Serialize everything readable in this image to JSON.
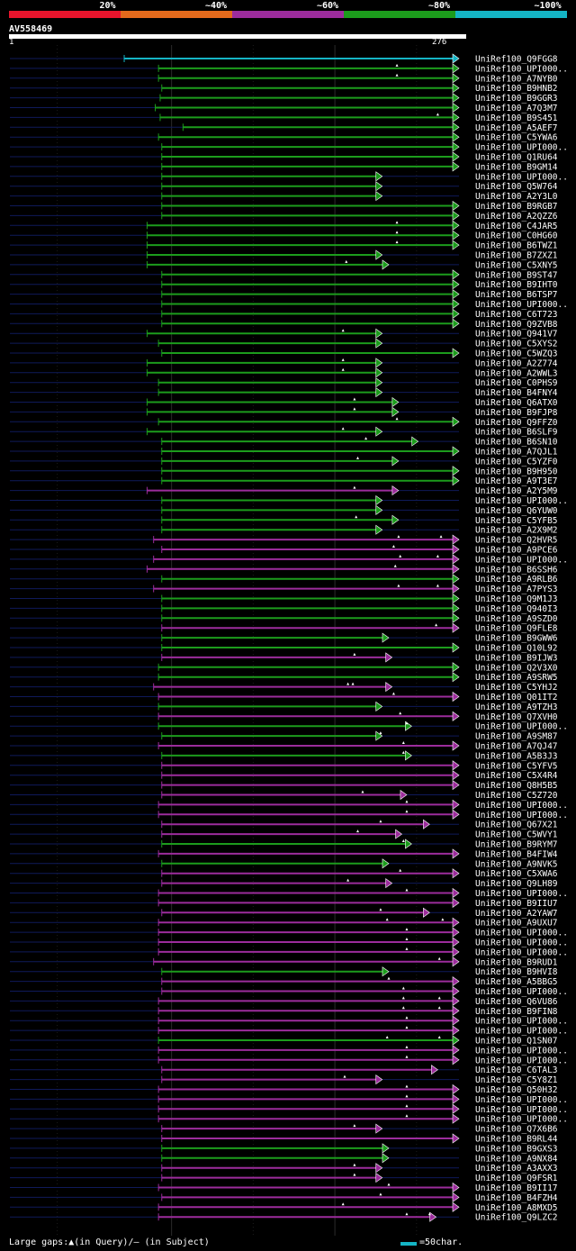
{
  "legend": {
    "labels": [
      "20%",
      "~40%",
      "~60%",
      "~80%",
      "~100%"
    ],
    "colors": [
      "#e8142c",
      "#e46a1c",
      "#9c2c9c",
      "#1c9c1c",
      "#14b4c4"
    ]
  },
  "query": {
    "name": "AV558469",
    "start": "1",
    "end": "276"
  },
  "footer": {
    "gaps_text": "Large gaps:▲(in Query)/– (in Subject)",
    "scale_text": "=50char.",
    "scale_color": "#14b4c4"
  },
  "chart_data": {
    "type": "alignment",
    "query_length": 276,
    "colors": {
      "100": "#14b4c4",
      "80": "#1c9c1c",
      "60": "#9c2c9c"
    },
    "hits": [
      {
        "name": "UniRef100_Q9FGG8",
        "start": 71,
        "end": 276,
        "identity": 100,
        "gaps": []
      },
      {
        "name": "UniRef100_UPI000..",
        "start": 92,
        "end": 276,
        "identity": 80,
        "gaps": [
          238
        ]
      },
      {
        "name": "UniRef100_A7NYB0",
        "start": 92,
        "end": 276,
        "identity": 80,
        "gaps": [
          238
        ]
      },
      {
        "name": "UniRef100_B9HNB2",
        "start": 94,
        "end": 276,
        "identity": 80,
        "gaps": []
      },
      {
        "name": "UniRef100_B9GGR3",
        "start": 93,
        "end": 276,
        "identity": 80,
        "gaps": []
      },
      {
        "name": "UniRef100_A7Q3M7",
        "start": 90,
        "end": 276,
        "identity": 80,
        "gaps": []
      },
      {
        "name": "UniRef100_B9S451",
        "start": 93,
        "end": 276,
        "identity": 80,
        "gaps": [
          263
        ]
      },
      {
        "name": "UniRef100_A5AEF7",
        "start": 107,
        "end": 276,
        "identity": 80,
        "gaps": []
      },
      {
        "name": "UniRef100_C5YWA6",
        "start": 92,
        "end": 276,
        "identity": 80,
        "gaps": []
      },
      {
        "name": "UniRef100_UPI000..",
        "start": 94,
        "end": 276,
        "identity": 80,
        "gaps": []
      },
      {
        "name": "UniRef100_Q1RU64",
        "start": 94,
        "end": 276,
        "identity": 80,
        "gaps": []
      },
      {
        "name": "UniRef100_B9GM14",
        "start": 94,
        "end": 276,
        "identity": 80,
        "gaps": []
      },
      {
        "name": "UniRef100_UPI000..",
        "start": 94,
        "end": 229,
        "identity": 80,
        "gaps": []
      },
      {
        "name": "UniRef100_Q5W764",
        "start": 94,
        "end": 229,
        "identity": 80,
        "gaps": []
      },
      {
        "name": "UniRef100_A2Y3L0",
        "start": 94,
        "end": 229,
        "identity": 80,
        "gaps": []
      },
      {
        "name": "UniRef100_B9RGB7",
        "start": 94,
        "end": 276,
        "identity": 80,
        "gaps": []
      },
      {
        "name": "UniRef100_A2QZZ6",
        "start": 94,
        "end": 276,
        "identity": 80,
        "gaps": []
      },
      {
        "name": "UniRef100_C4JAR5",
        "start": 85,
        "end": 276,
        "identity": 80,
        "gaps": [
          238
        ]
      },
      {
        "name": "UniRef100_C0HG60",
        "start": 85,
        "end": 276,
        "identity": 80,
        "gaps": [
          238
        ]
      },
      {
        "name": "UniRef100_B6TWZ1",
        "start": 85,
        "end": 276,
        "identity": 80,
        "gaps": [
          238
        ]
      },
      {
        "name": "UniRef100_B7ZXZ1",
        "start": 85,
        "end": 229,
        "identity": 80,
        "gaps": []
      },
      {
        "name": "UniRef100_C5XNY5",
        "start": 85,
        "end": 233,
        "identity": 80,
        "gaps": [
          207
        ]
      },
      {
        "name": "UniRef100_B9ST47",
        "start": 94,
        "end": 276,
        "identity": 80,
        "gaps": []
      },
      {
        "name": "UniRef100_B9IHT0",
        "start": 94,
        "end": 276,
        "identity": 80,
        "gaps": []
      },
      {
        "name": "UniRef100_B6TSP7",
        "start": 94,
        "end": 276,
        "identity": 80,
        "gaps": []
      },
      {
        "name": "UniRef100_UPI000..",
        "start": 94,
        "end": 276,
        "identity": 80,
        "gaps": []
      },
      {
        "name": "UniRef100_C6T723",
        "start": 94,
        "end": 276,
        "identity": 80,
        "gaps": []
      },
      {
        "name": "UniRef100_Q9ZVB8",
        "start": 94,
        "end": 276,
        "identity": 80,
        "gaps": []
      },
      {
        "name": "UniRef100_Q941V7",
        "start": 85,
        "end": 229,
        "identity": 80,
        "gaps": [
          205
        ]
      },
      {
        "name": "UniRef100_C5XYS2",
        "start": 92,
        "end": 229,
        "identity": 80,
        "gaps": []
      },
      {
        "name": "UniRef100_C5WZQ3",
        "start": 94,
        "end": 276,
        "identity": 80,
        "gaps": []
      },
      {
        "name": "UniRef100_A2Z774",
        "start": 85,
        "end": 229,
        "identity": 80,
        "gaps": [
          205
        ]
      },
      {
        "name": "UniRef100_A2WWL3",
        "start": 85,
        "end": 229,
        "identity": 80,
        "gaps": [
          205
        ]
      },
      {
        "name": "UniRef100_C0PHS9",
        "start": 92,
        "end": 229,
        "identity": 80,
        "gaps": []
      },
      {
        "name": "UniRef100_B4FNY4",
        "start": 92,
        "end": 229,
        "identity": 80,
        "gaps": []
      },
      {
        "name": "UniRef100_Q6ATX0",
        "start": 85,
        "end": 239,
        "identity": 80,
        "gaps": [
          212
        ]
      },
      {
        "name": "UniRef100_B9FJP8",
        "start": 85,
        "end": 239,
        "identity": 80,
        "gaps": [
          212
        ]
      },
      {
        "name": "UniRef100_Q9FFZ0",
        "start": 92,
        "end": 276,
        "identity": 80,
        "gaps": [
          238
        ]
      },
      {
        "name": "UniRef100_B6SLF9",
        "start": 85,
        "end": 229,
        "identity": 80,
        "gaps": [
          205
        ]
      },
      {
        "name": "UniRef100_B6SN10",
        "start": 94,
        "end": 251,
        "identity": 80,
        "gaps": [
          219
        ]
      },
      {
        "name": "UniRef100_A7QJL1",
        "start": 94,
        "end": 276,
        "identity": 80,
        "gaps": []
      },
      {
        "name": "UniRef100_C5YZF0",
        "start": 94,
        "end": 239,
        "identity": 80,
        "gaps": [
          214
        ]
      },
      {
        "name": "UniRef100_B9H950",
        "start": 94,
        "end": 276,
        "identity": 80,
        "gaps": []
      },
      {
        "name": "UniRef100_A9T3E7",
        "start": 94,
        "end": 276,
        "identity": 80,
        "gaps": []
      },
      {
        "name": "UniRef100_A2Y5M9",
        "start": 85,
        "end": 239,
        "identity": 60,
        "gaps": [
          212
        ]
      },
      {
        "name": "UniRef100_UPI000..",
        "start": 94,
        "end": 229,
        "identity": 80,
        "gaps": []
      },
      {
        "name": "UniRef100_Q6YUW0",
        "start": 94,
        "end": 229,
        "identity": 80,
        "gaps": []
      },
      {
        "name": "UniRef100_C5YFB5",
        "start": 94,
        "end": 239,
        "identity": 80,
        "gaps": [
          213
        ]
      },
      {
        "name": "UniRef100_A2X9M2",
        "start": 94,
        "end": 229,
        "identity": 80,
        "gaps": []
      },
      {
        "name": "UniRef100_Q2HVR5",
        "start": 89,
        "end": 276,
        "identity": 60,
        "gaps": [
          239,
          265
        ]
      },
      {
        "name": "UniRef100_A9PCE6",
        "start": 94,
        "end": 276,
        "identity": 60,
        "gaps": [
          236
        ]
      },
      {
        "name": "UniRef100_UPI000..",
        "start": 89,
        "end": 276,
        "identity": 60,
        "gaps": [
          240,
          263
        ]
      },
      {
        "name": "UniRef100_B6SSH6",
        "start": 85,
        "end": 276,
        "identity": 60,
        "gaps": [
          237
        ]
      },
      {
        "name": "UniRef100_A9RLB6",
        "start": 94,
        "end": 276,
        "identity": 80,
        "gaps": []
      },
      {
        "name": "UniRef100_A7PYS3",
        "start": 89,
        "end": 276,
        "identity": 60,
        "gaps": [
          239,
          263
        ]
      },
      {
        "name": "UniRef100_Q9M1J3",
        "start": 94,
        "end": 276,
        "identity": 80,
        "gaps": []
      },
      {
        "name": "UniRef100_Q940I3",
        "start": 94,
        "end": 276,
        "identity": 80,
        "gaps": []
      },
      {
        "name": "UniRef100_A9SZD0",
        "start": 94,
        "end": 276,
        "identity": 80,
        "gaps": []
      },
      {
        "name": "UniRef100_Q9FLE8",
        "start": 94,
        "end": 276,
        "identity": 60,
        "gaps": [
          262
        ]
      },
      {
        "name": "UniRef100_B9GWW6",
        "start": 94,
        "end": 233,
        "identity": 80,
        "gaps": []
      },
      {
        "name": "UniRef100_Q10L92",
        "start": 94,
        "end": 276,
        "identity": 80,
        "gaps": []
      },
      {
        "name": "UniRef100_B9IJW3",
        "start": 94,
        "end": 235,
        "identity": 60,
        "gaps": [
          212
        ]
      },
      {
        "name": "UniRef100_Q2V3X0",
        "start": 92,
        "end": 276,
        "identity": 80,
        "gaps": []
      },
      {
        "name": "UniRef100_A9SRW5",
        "start": 92,
        "end": 276,
        "identity": 80,
        "gaps": []
      },
      {
        "name": "UniRef100_C5YHJ2",
        "start": 89,
        "end": 235,
        "identity": 60,
        "gaps": [
          208,
          211
        ]
      },
      {
        "name": "UniRef100_Q01IT2",
        "start": 92,
        "end": 276,
        "identity": 60,
        "gaps": [
          236
        ]
      },
      {
        "name": "UniRef100_A9TZH3",
        "start": 92,
        "end": 229,
        "identity": 80,
        "gaps": []
      },
      {
        "name": "UniRef100_Q7XVH0",
        "start": 92,
        "end": 276,
        "identity": 60,
        "gaps": [
          240
        ]
      },
      {
        "name": "UniRef100_UPI000..",
        "start": 92,
        "end": 247,
        "identity": 80,
        "gaps": [
          244
        ]
      },
      {
        "name": "UniRef100_A9SM87",
        "start": 94,
        "end": 229,
        "identity": 80,
        "gaps": [
          228
        ]
      },
      {
        "name": "UniRef100_A7QJ47",
        "start": 92,
        "end": 276,
        "identity": 60,
        "gaps": [
          242
        ]
      },
      {
        "name": "UniRef100_A5B3J3",
        "start": 94,
        "end": 247,
        "identity": 80,
        "gaps": [
          242
        ]
      },
      {
        "name": "UniRef100_C5YFV5",
        "start": 94,
        "end": 276,
        "identity": 60,
        "gaps": []
      },
      {
        "name": "UniRef100_C5X4R4",
        "start": 94,
        "end": 276,
        "identity": 60,
        "gaps": []
      },
      {
        "name": "UniRef100_Q8H5B5",
        "start": 94,
        "end": 276,
        "identity": 60,
        "gaps": []
      },
      {
        "name": "UniRef100_C5Z720",
        "start": 94,
        "end": 244,
        "identity": 60,
        "gaps": [
          217
        ]
      },
      {
        "name": "UniRef100_UPI000..",
        "start": 92,
        "end": 276,
        "identity": 60,
        "gaps": [
          244
        ]
      },
      {
        "name": "UniRef100_UPI000..",
        "start": 92,
        "end": 276,
        "identity": 60,
        "gaps": [
          244
        ]
      },
      {
        "name": "UniRef100_Q67X21",
        "start": 94,
        "end": 258,
        "identity": 60,
        "gaps": [
          228
        ]
      },
      {
        "name": "UniRef100_C5WVY1",
        "start": 94,
        "end": 241,
        "identity": 60,
        "gaps": [
          214
        ]
      },
      {
        "name": "UniRef100_B9RYM7",
        "start": 94,
        "end": 247,
        "identity": 80,
        "gaps": [
          242
        ]
      },
      {
        "name": "UniRef100_B4FIW4",
        "start": 92,
        "end": 276,
        "identity": 60,
        "gaps": []
      },
      {
        "name": "UniRef100_A9NVK5",
        "start": 94,
        "end": 233,
        "identity": 80,
        "gaps": []
      },
      {
        "name": "UniRef100_C5XWA6",
        "start": 94,
        "end": 276,
        "identity": 60,
        "gaps": [
          240
        ]
      },
      {
        "name": "UniRef100_Q9LH89",
        "start": 94,
        "end": 235,
        "identity": 60,
        "gaps": [
          208
        ]
      },
      {
        "name": "UniRef100_UPI000..",
        "start": 92,
        "end": 276,
        "identity": 60,
        "gaps": [
          244
        ]
      },
      {
        "name": "UniRef100_B9IIU7",
        "start": 92,
        "end": 276,
        "identity": 60,
        "gaps": []
      },
      {
        "name": "UniRef100_A2YAW7",
        "start": 94,
        "end": 258,
        "identity": 60,
        "gaps": [
          228
        ]
      },
      {
        "name": "UniRef100_A9UXU7",
        "start": 92,
        "end": 276,
        "identity": 60,
        "gaps": [
          232,
          266
        ]
      },
      {
        "name": "UniRef100_UPI000..",
        "start": 92,
        "end": 276,
        "identity": 60,
        "gaps": [
          244
        ]
      },
      {
        "name": "UniRef100_UPI000..",
        "start": 92,
        "end": 276,
        "identity": 60,
        "gaps": [
          244
        ]
      },
      {
        "name": "UniRef100_UPI000..",
        "start": 92,
        "end": 276,
        "identity": 60,
        "gaps": [
          244
        ]
      },
      {
        "name": "UniRef100_B9RUD1",
        "start": 89,
        "end": 276,
        "identity": 60,
        "gaps": [
          264
        ]
      },
      {
        "name": "UniRef100_B9HVI8",
        "start": 94,
        "end": 233,
        "identity": 80,
        "gaps": []
      },
      {
        "name": "UniRef100_A5BBG5",
        "start": 94,
        "end": 276,
        "identity": 60,
        "gaps": [
          233
        ]
      },
      {
        "name": "UniRef100_UPI000..",
        "start": 94,
        "end": 276,
        "identity": 60,
        "gaps": [
          242
        ]
      },
      {
        "name": "UniRef100_Q6VU86",
        "start": 92,
        "end": 276,
        "identity": 60,
        "gaps": [
          242,
          264
        ]
      },
      {
        "name": "UniRef100_B9FIN8",
        "start": 92,
        "end": 276,
        "identity": 60,
        "gaps": [
          242,
          264
        ]
      },
      {
        "name": "UniRef100_UPI000..",
        "start": 92,
        "end": 276,
        "identity": 60,
        "gaps": [
          244
        ]
      },
      {
        "name": "UniRef100_UPI000..",
        "start": 92,
        "end": 276,
        "identity": 60,
        "gaps": [
          244
        ]
      },
      {
        "name": "UniRef100_Q1SN07",
        "start": 92,
        "end": 276,
        "identity": 80,
        "gaps": [
          232,
          264
        ]
      },
      {
        "name": "UniRef100_UPI000..",
        "start": 92,
        "end": 276,
        "identity": 60,
        "gaps": [
          244
        ]
      },
      {
        "name": "UniRef100_UPI000..",
        "start": 92,
        "end": 276,
        "identity": 60,
        "gaps": [
          244
        ]
      },
      {
        "name": "UniRef100_C6TAL3",
        "start": 94,
        "end": 263,
        "identity": 60,
        "gaps": []
      },
      {
        "name": "UniRef100_C5Y8Z1",
        "start": 94,
        "end": 229,
        "identity": 60,
        "gaps": [
          206
        ]
      },
      {
        "name": "UniRef100_Q50H32",
        "start": 92,
        "end": 276,
        "identity": 60,
        "gaps": [
          244
        ]
      },
      {
        "name": "UniRef100_UPI000..",
        "start": 92,
        "end": 276,
        "identity": 60,
        "gaps": [
          244
        ]
      },
      {
        "name": "UniRef100_UPI000..",
        "start": 92,
        "end": 276,
        "identity": 60,
        "gaps": [
          244
        ]
      },
      {
        "name": "UniRef100_UPI000..",
        "start": 92,
        "end": 276,
        "identity": 60,
        "gaps": [
          244
        ]
      },
      {
        "name": "UniRef100_Q7X6B6",
        "start": 94,
        "end": 229,
        "identity": 60,
        "gaps": [
          212
        ]
      },
      {
        "name": "UniRef100_B9RL44",
        "start": 94,
        "end": 276,
        "identity": 60,
        "gaps": []
      },
      {
        "name": "UniRef100_B9GXS3",
        "start": 94,
        "end": 233,
        "identity": 80,
        "gaps": []
      },
      {
        "name": "UniRef100_A9NX84",
        "start": 94,
        "end": 233,
        "identity": 80,
        "gaps": []
      },
      {
        "name": "UniRef100_A3AXX3",
        "start": 94,
        "end": 229,
        "identity": 60,
        "gaps": [
          212
        ]
      },
      {
        "name": "UniRef100_Q9FSR1",
        "start": 94,
        "end": 229,
        "identity": 60,
        "gaps": [
          212
        ]
      },
      {
        "name": "UniRef100_B9II17",
        "start": 92,
        "end": 276,
        "identity": 60,
        "gaps": [
          233
        ]
      },
      {
        "name": "UniRef100_B4FZH4",
        "start": 94,
        "end": 276,
        "identity": 60,
        "gaps": [
          228
        ]
      },
      {
        "name": "UniRef100_A8MXD5",
        "start": 92,
        "end": 276,
        "identity": 60,
        "gaps": [
          205
        ]
      },
      {
        "name": "UniRef100_Q9LZC2",
        "start": 92,
        "end": 262,
        "identity": 60,
        "gaps": [
          244,
          258
        ]
      }
    ]
  }
}
